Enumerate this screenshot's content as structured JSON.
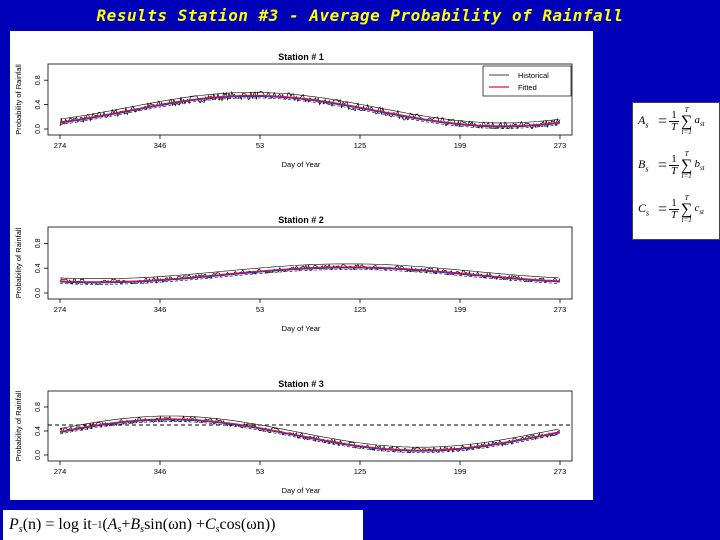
{
  "slide_title": "Results Station #3  - Average Probability of Rainfall",
  "legend": {
    "entries": [
      "Historical",
      "Fitted"
    ]
  },
  "formula_side": {
    "rows": [
      {
        "lhs": "A",
        "sub": "s",
        "term": "a",
        "term_sub": "st"
      },
      {
        "lhs": "B",
        "sub": "s",
        "term": "b",
        "term_sub": "st"
      },
      {
        "lhs": "C",
        "sub": "s",
        "term": "c",
        "term_sub": "st"
      }
    ],
    "one": "1",
    "T": "T",
    "sigma": "∑",
    "t_eq_1": "t=1"
  },
  "formula_bottom": {
    "lhs": "P",
    "lhs_sub": "s",
    "lhs_arg": "(n) = log it",
    "sup": "−1",
    "rest_1": "(",
    "A": "A",
    "plus_1": " + ",
    "B": "B",
    "sin": " sin(ωn) + ",
    "C": "C",
    "cos": " cos(ωn))",
    "sub_s": "s"
  },
  "chart_data": [
    {
      "type": "line",
      "title": "Station # 1",
      "xlabel": "Day of Year",
      "ylabel": "Probability of Rainfall",
      "xticks": [
        "274",
        "346",
        "53",
        "125",
        "199",
        "273"
      ],
      "yticks": [
        "0.0",
        "0.4",
        "0.8"
      ],
      "ylim": [
        0,
        1.0
      ],
      "legend": "top-right",
      "peak_day_index": 140,
      "peak_value": 0.55,
      "trough_value": 0.05,
      "noise": 0.07
    },
    {
      "type": "line",
      "title": "Station # 2",
      "xlabel": "Day of Year",
      "ylabel": "Probability of Rainfall",
      "xticks": [
        "274",
        "346",
        "53",
        "125",
        "199",
        "273"
      ],
      "yticks": [
        "0.0",
        "0.4",
        "0.8"
      ],
      "ylim": [
        0,
        1.0
      ],
      "peak_day_index": 210,
      "peak_value": 0.42,
      "trough_value": 0.18,
      "noise": 0.045
    },
    {
      "type": "line",
      "title": "Station # 3",
      "xlabel": "Day of Year",
      "ylabel": "Probability of Rainfall",
      "xticks": [
        "274",
        "346",
        "53",
        "125",
        "199",
        "273"
      ],
      "yticks": [
        "0.0",
        "0.4",
        "0.8"
      ],
      "ylim": [
        0,
        1.0
      ],
      "peak_day_index": 80,
      "peak_value": 0.6,
      "trough_value": 0.08,
      "noise": 0.05,
      "reference_line": 0.5
    }
  ]
}
